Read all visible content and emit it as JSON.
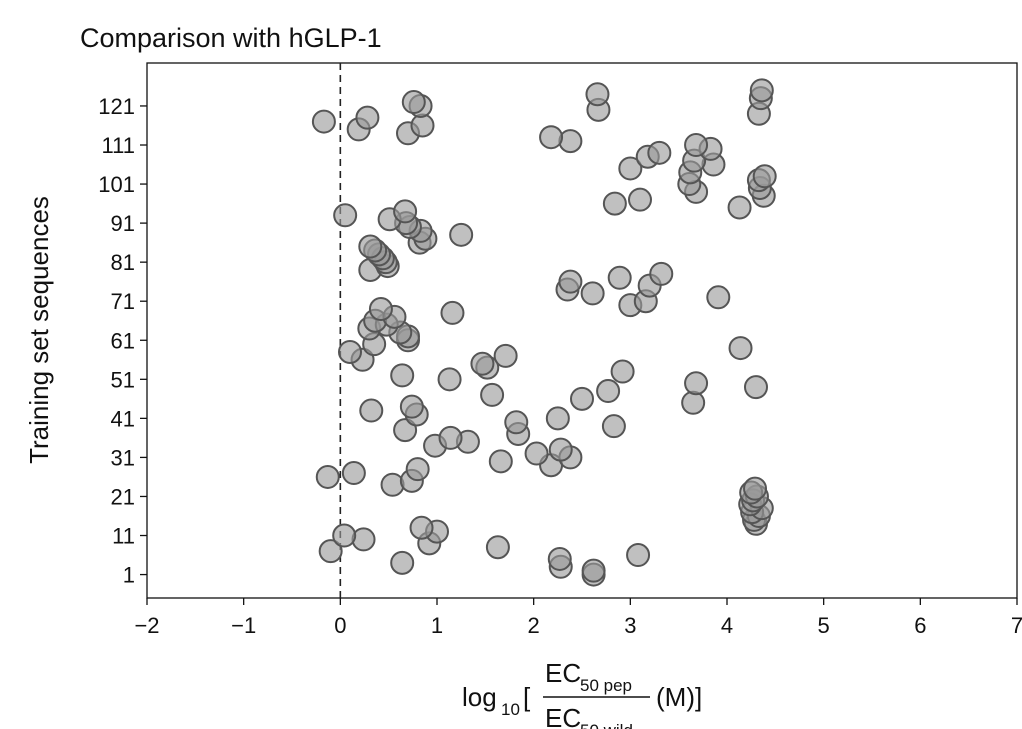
{
  "chart_data": {
    "type": "scatter",
    "title": "Comparison with hGLP-1",
    "ylabel": "Training set sequences",
    "xlabel": {
      "prefix": "log",
      "prefix_sub": "10",
      "open_bracket": "[",
      "numerator": "EC",
      "numerator_sub": "50 pep",
      "denominator": "EC",
      "denominator_sub": "50 wild",
      "unit": "(M)]"
    },
    "xlim": [
      -2,
      7
    ],
    "ylim": [
      -5,
      132
    ],
    "x_ticks": [
      "−2",
      "−1",
      "0",
      "1",
      "2",
      "3",
      "4",
      "5",
      "6",
      "7"
    ],
    "y_ticks": [
      "1",
      "11",
      "21",
      "31",
      "41",
      "51",
      "61",
      "71",
      "81",
      "91",
      "101",
      "111",
      "121"
    ],
    "reference_line": {
      "x": 0,
      "style": "dashed"
    },
    "marker_color": "#999999",
    "marker_edge_color": "#555555",
    "points": [
      {
        "x": 2.62,
        "y": 1
      },
      {
        "x": 2.62,
        "y": 2
      },
      {
        "x": 2.28,
        "y": 3
      },
      {
        "x": 0.64,
        "y": 4
      },
      {
        "x": 2.27,
        "y": 5
      },
      {
        "x": 3.08,
        "y": 6
      },
      {
        "x": -0.1,
        "y": 7
      },
      {
        "x": 1.63,
        "y": 8
      },
      {
        "x": 0.92,
        "y": 9
      },
      {
        "x": 0.24,
        "y": 10
      },
      {
        "x": 0.04,
        "y": 11
      },
      {
        "x": 1.0,
        "y": 12
      },
      {
        "x": 0.84,
        "y": 13
      },
      {
        "x": 4.3,
        "y": 14
      },
      {
        "x": 4.28,
        "y": 15
      },
      {
        "x": 4.33,
        "y": 16
      },
      {
        "x": 4.26,
        "y": 17
      },
      {
        "x": 4.36,
        "y": 18
      },
      {
        "x": 4.24,
        "y": 19
      },
      {
        "x": 4.27,
        "y": 20
      },
      {
        "x": 4.31,
        "y": 21
      },
      {
        "x": 4.25,
        "y": 22
      },
      {
        "x": 4.29,
        "y": 23
      },
      {
        "x": 0.54,
        "y": 24
      },
      {
        "x": 0.74,
        "y": 25
      },
      {
        "x": -0.13,
        "y": 26
      },
      {
        "x": 0.14,
        "y": 27
      },
      {
        "x": 0.8,
        "y": 28
      },
      {
        "x": 2.18,
        "y": 29
      },
      {
        "x": 1.66,
        "y": 30
      },
      {
        "x": 2.38,
        "y": 31
      },
      {
        "x": 2.03,
        "y": 32
      },
      {
        "x": 2.28,
        "y": 33
      },
      {
        "x": 0.98,
        "y": 34
      },
      {
        "x": 1.32,
        "y": 35
      },
      {
        "x": 1.14,
        "y": 36
      },
      {
        "x": 1.84,
        "y": 37
      },
      {
        "x": 0.67,
        "y": 38
      },
      {
        "x": 2.83,
        "y": 39
      },
      {
        "x": 1.82,
        "y": 40
      },
      {
        "x": 2.25,
        "y": 41
      },
      {
        "x": 0.79,
        "y": 42
      },
      {
        "x": 0.32,
        "y": 43
      },
      {
        "x": 0.74,
        "y": 44
      },
      {
        "x": 3.65,
        "y": 45
      },
      {
        "x": 2.5,
        "y": 46
      },
      {
        "x": 1.57,
        "y": 47
      },
      {
        "x": 2.77,
        "y": 48
      },
      {
        "x": 4.3,
        "y": 49
      },
      {
        "x": 3.68,
        "y": 50
      },
      {
        "x": 1.13,
        "y": 51
      },
      {
        "x": 0.64,
        "y": 52
      },
      {
        "x": 2.92,
        "y": 53
      },
      {
        "x": 1.52,
        "y": 54
      },
      {
        "x": 1.47,
        "y": 55
      },
      {
        "x": 0.23,
        "y": 56
      },
      {
        "x": 1.71,
        "y": 57
      },
      {
        "x": 0.1,
        "y": 58
      },
      {
        "x": 4.14,
        "y": 59
      },
      {
        "x": 0.35,
        "y": 60
      },
      {
        "x": 0.7,
        "y": 61
      },
      {
        "x": 0.7,
        "y": 62
      },
      {
        "x": 0.62,
        "y": 63
      },
      {
        "x": 0.3,
        "y": 64
      },
      {
        "x": 0.48,
        "y": 65
      },
      {
        "x": 0.36,
        "y": 66
      },
      {
        "x": 0.56,
        "y": 67
      },
      {
        "x": 1.16,
        "y": 68
      },
      {
        "x": 0.42,
        "y": 69
      },
      {
        "x": 3.0,
        "y": 70
      },
      {
        "x": 3.16,
        "y": 71
      },
      {
        "x": 3.91,
        "y": 72
      },
      {
        "x": 2.61,
        "y": 73
      },
      {
        "x": 2.35,
        "y": 74
      },
      {
        "x": 3.2,
        "y": 75
      },
      {
        "x": 2.38,
        "y": 76
      },
      {
        "x": 2.89,
        "y": 77
      },
      {
        "x": 3.32,
        "y": 78
      },
      {
        "x": 0.31,
        "y": 79
      },
      {
        "x": 0.49,
        "y": 80
      },
      {
        "x": 0.47,
        "y": 81
      },
      {
        "x": 0.44,
        "y": 82
      },
      {
        "x": 0.4,
        "y": 83
      },
      {
        "x": 0.36,
        "y": 84
      },
      {
        "x": 0.31,
        "y": 85
      },
      {
        "x": 0.82,
        "y": 86
      },
      {
        "x": 0.88,
        "y": 87
      },
      {
        "x": 1.25,
        "y": 88
      },
      {
        "x": 0.83,
        "y": 89
      },
      {
        "x": 0.72,
        "y": 90
      },
      {
        "x": 0.68,
        "y": 91
      },
      {
        "x": 0.51,
        "y": 92
      },
      {
        "x": 0.05,
        "y": 93
      },
      {
        "x": 0.67,
        "y": 94
      },
      {
        "x": 4.13,
        "y": 95
      },
      {
        "x": 2.84,
        "y": 96
      },
      {
        "x": 3.1,
        "y": 97
      },
      {
        "x": 4.38,
        "y": 98
      },
      {
        "x": 3.68,
        "y": 99
      },
      {
        "x": 4.34,
        "y": 100
      },
      {
        "x": 3.61,
        "y": 101
      },
      {
        "x": 4.33,
        "y": 102
      },
      {
        "x": 4.39,
        "y": 103
      },
      {
        "x": 3.62,
        "y": 104
      },
      {
        "x": 3.0,
        "y": 105
      },
      {
        "x": 3.86,
        "y": 106
      },
      {
        "x": 3.66,
        "y": 107
      },
      {
        "x": 3.18,
        "y": 108
      },
      {
        "x": 3.3,
        "y": 109
      },
      {
        "x": 3.83,
        "y": 110
      },
      {
        "x": 3.68,
        "y": 111
      },
      {
        "x": 2.38,
        "y": 112
      },
      {
        "x": 2.18,
        "y": 113
      },
      {
        "x": 0.7,
        "y": 114
      },
      {
        "x": 0.19,
        "y": 115
      },
      {
        "x": 0.85,
        "y": 116
      },
      {
        "x": -0.17,
        "y": 117
      },
      {
        "x": 0.28,
        "y": 118
      },
      {
        "x": 4.33,
        "y": 119
      },
      {
        "x": 2.67,
        "y": 120
      },
      {
        "x": 0.83,
        "y": 121
      },
      {
        "x": 0.76,
        "y": 122
      },
      {
        "x": 4.35,
        "y": 123
      },
      {
        "x": 2.66,
        "y": 124
      },
      {
        "x": 4.36,
        "y": 125
      }
    ]
  }
}
